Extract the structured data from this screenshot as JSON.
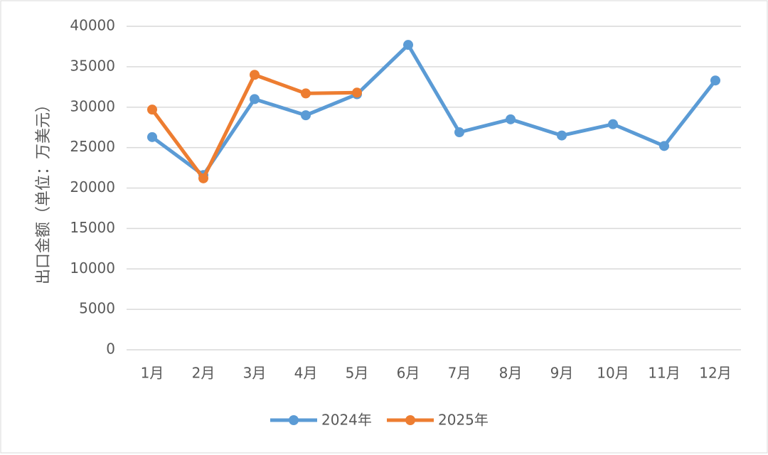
{
  "chart_data": {
    "type": "line",
    "ylabel": "出口金额（单位：万美元）",
    "categories": [
      "1月",
      "2月",
      "3月",
      "4月",
      "5月",
      "6月",
      "7月",
      "8月",
      "9月",
      "10月",
      "11月",
      "12月"
    ],
    "series": [
      {
        "name": "2024年",
        "color": "#5b9bd5",
        "values": [
          26300,
          21600,
          31000,
          29000,
          31600,
          37700,
          26900,
          28500,
          26500,
          27900,
          25200,
          33300
        ]
      },
      {
        "name": "2025年",
        "color": "#ed7d31",
        "values": [
          29700,
          21200,
          34000,
          31700,
          31800,
          null,
          null,
          null,
          null,
          null,
          null,
          null
        ]
      }
    ],
    "ylim": [
      0,
      40000
    ],
    "yticks": [
      0,
      5000,
      10000,
      15000,
      20000,
      25000,
      30000,
      35000,
      40000
    ],
    "grid": true,
    "legend": "bottom"
  }
}
